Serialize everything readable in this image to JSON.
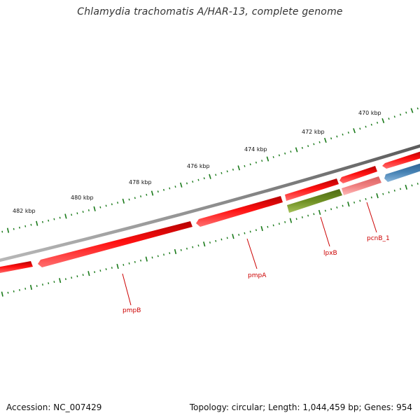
{
  "title": "Chlamydia trachomatis A/HAR-13, complete genome",
  "footer": {
    "accession": "Accession: NC_007429",
    "summary": "Topology: circular; Length: 1,044,459 bp; Genes: 954"
  },
  "ruler": {
    "unit": "kbp",
    "labels": [
      "482 kbp",
      "480 kbp",
      "478 kbp",
      "476 kbp",
      "474 kbp",
      "472 kbp",
      "470 kbp"
    ]
  },
  "genes": [
    {
      "label": "pmpB",
      "color": "#ee0000",
      "track": "outer-forward"
    },
    {
      "label": "pmpA",
      "color": "#ee0000",
      "track": "outer-forward"
    },
    {
      "label": "lpxB",
      "color": "#6b8e23",
      "track": "inner-reverse"
    },
    {
      "label": "pcnB_1",
      "color": "#f08080",
      "track": "inner-reverse"
    }
  ],
  "colors": {
    "backbone": "#808080",
    "tick": "#1a7a1a",
    "cds_forward": "#ee0000",
    "cds_reverse_blue": "#4682b4",
    "label": "#cc0000"
  }
}
